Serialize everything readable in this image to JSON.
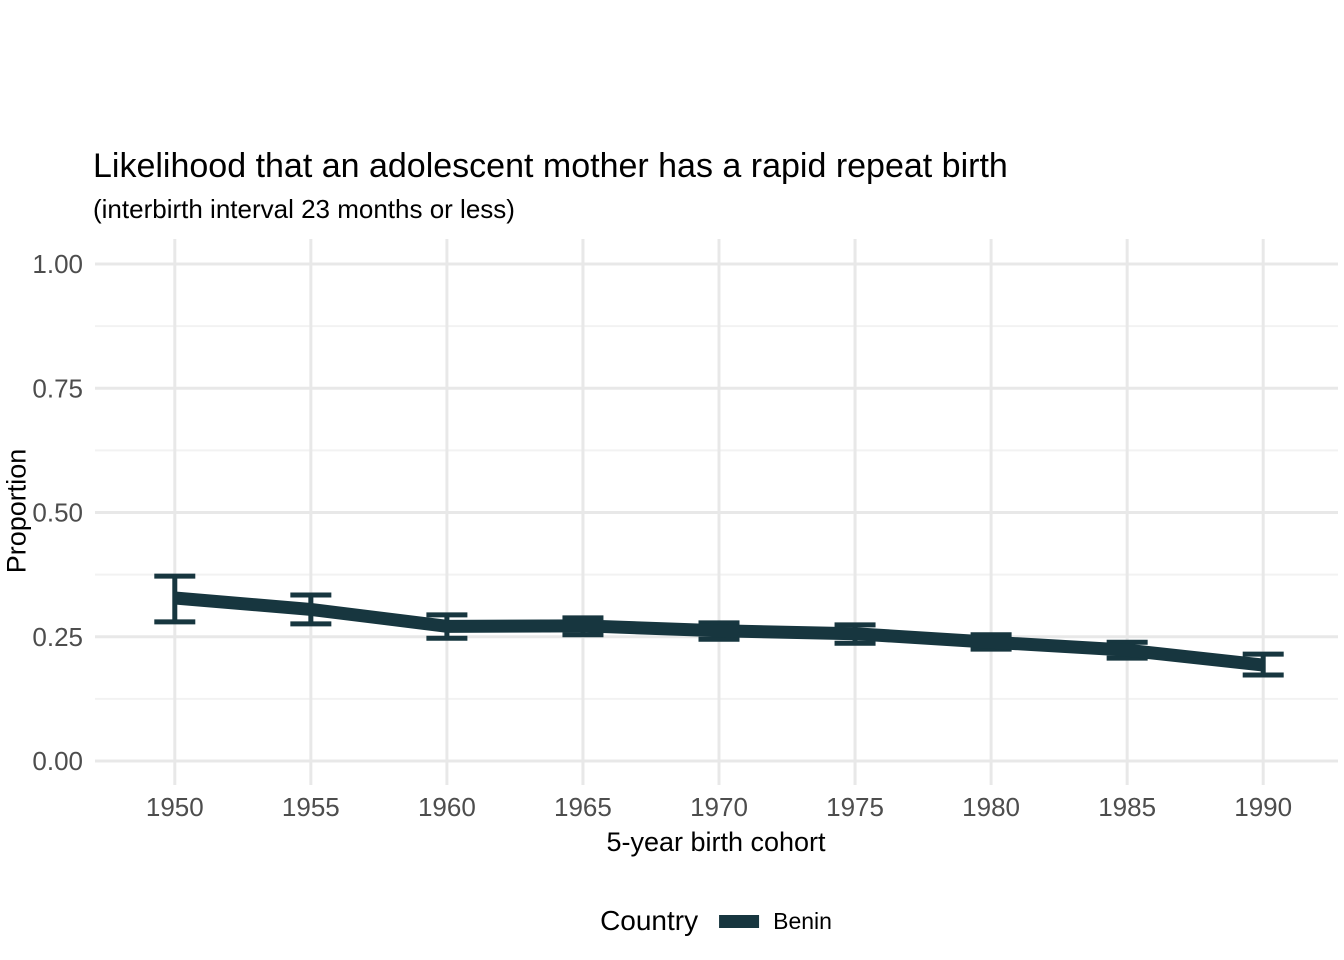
{
  "chart_data": {
    "type": "line",
    "title": "Likelihood that an adolescent mother has a rapid repeat birth",
    "subtitle": "(interbirth interval 23 months or less)",
    "xlabel": "5-year birth cohort",
    "ylabel": "Proportion",
    "categories": [
      "1950",
      "1955",
      "1960",
      "1965",
      "1970",
      "1975",
      "1980",
      "1985",
      "1990"
    ],
    "y_ticks": [
      1.0,
      0.75,
      0.5,
      0.25,
      0.0
    ],
    "y_minor_ticks": [
      0.875,
      0.625,
      0.375,
      0.125
    ],
    "ylim": [
      0,
      1
    ],
    "grid": true,
    "legend_position": "bottom",
    "series": [
      {
        "name": "Benin",
        "color": "#17363f",
        "values": [
          0.328,
          0.305,
          0.271,
          0.272,
          0.262,
          0.256,
          0.239,
          0.223,
          0.193
        ],
        "ci_low": [
          0.28,
          0.276,
          0.247,
          0.254,
          0.245,
          0.237,
          0.225,
          0.207,
          0.173
        ],
        "ci_high": [
          0.372,
          0.334,
          0.294,
          0.288,
          0.278,
          0.274,
          0.254,
          0.239,
          0.215
        ]
      }
    ]
  },
  "legend": {
    "title": "Country",
    "items": [
      {
        "label": "Benin",
        "color": "#17363f"
      }
    ]
  },
  "colors": {
    "series_line": "#17363f",
    "grid_major": "#e8e8e8",
    "grid_minor": "#f2f2f2",
    "axis_text": "#4d4d4d",
    "title_text": "#000000",
    "background": "#ffffff"
  }
}
